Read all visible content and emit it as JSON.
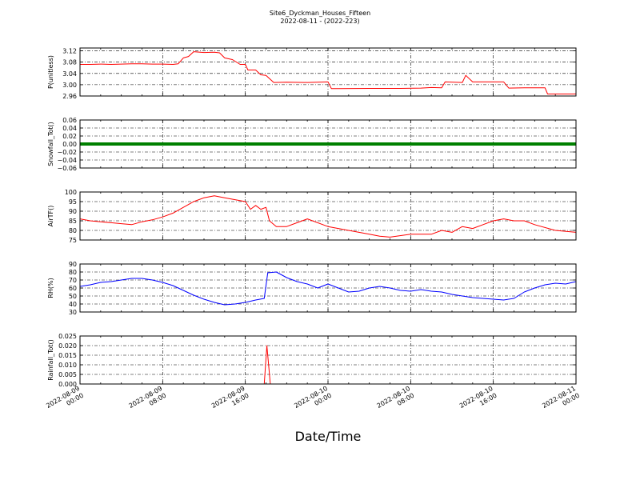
{
  "figure": {
    "title_line1": "Site6_Dyckman_Houses_Fifteen",
    "title_line2": "2022-08-11 - (2022-223)",
    "xlabel": "Date/Time"
  },
  "x_axis": {
    "range": [
      "2022-08-09 00:00",
      "2022-08-11 00:00"
    ],
    "ticks": [
      {
        "value": "2022-08-09 00:00",
        "line1": "2022-08-09",
        "line2": "00:00"
      },
      {
        "value": "2022-08-09 08:00",
        "line1": "2022-08-09",
        "line2": "08:00"
      },
      {
        "value": "2022-08-09 16:00",
        "line1": "2022-08-09",
        "line2": "16:00"
      },
      {
        "value": "2022-08-10 00:00",
        "line1": "2022-08-10",
        "line2": "00:00"
      },
      {
        "value": "2022-08-10 08:00",
        "line1": "2022-08-10",
        "line2": "08:00"
      },
      {
        "value": "2022-08-10 16:00",
        "line1": "2022-08-10",
        "line2": "16:00"
      },
      {
        "value": "2022-08-11 00:00",
        "line1": "2022-08-11",
        "line2": "00:00"
      }
    ]
  },
  "chart_data": [
    {
      "type": "line",
      "ylabel": "P(unitless)",
      "ylim": [
        2.96,
        3.13
      ],
      "yticks": [
        "3.12",
        "3.08",
        "3.04",
        "3.00",
        "2.96"
      ],
      "ytick_values": [
        3.12,
        3.08,
        3.04,
        3.0,
        2.96
      ],
      "grid": true,
      "series": [
        {
          "color": "#ff0000",
          "x": [
            "2022-08-09 00:00",
            "2022-08-09 01:00",
            "2022-08-09 02:00",
            "2022-08-09 03:00",
            "2022-08-09 04:00",
            "2022-08-09 05:00",
            "2022-08-09 06:00",
            "2022-08-09 07:00",
            "2022-08-09 08:00",
            "2022-08-09 09:00",
            "2022-08-09 09:30",
            "2022-08-09 10:00",
            "2022-08-09 10:30",
            "2022-08-09 11:00",
            "2022-08-09 12:00",
            "2022-08-09 13:00",
            "2022-08-09 13:30",
            "2022-08-09 14:00",
            "2022-08-09 14:45",
            "2022-08-09 15:30",
            "2022-08-09 16:00",
            "2022-08-09 16:15",
            "2022-08-09 17:00",
            "2022-08-09 17:30",
            "2022-08-09 18:00",
            "2022-08-09 18:45",
            "2022-08-09 20:00",
            "2022-08-09 22:00",
            "2022-08-10 00:00",
            "2022-08-10 00:20",
            "2022-08-10 01:00",
            "2022-08-10 04:00",
            "2022-08-10 07:00",
            "2022-08-10 09:00",
            "2022-08-10 10:00",
            "2022-08-10 11:00",
            "2022-08-10 11:20",
            "2022-08-10 13:00",
            "2022-08-10 13:20",
            "2022-08-10 14:00",
            "2022-08-10 16:00",
            "2022-08-10 17:00",
            "2022-08-10 17:30",
            "2022-08-10 19:00",
            "2022-08-10 21:00",
            "2022-08-10 21:15",
            "2022-08-10 24:00"
          ],
          "y": [
            3.072,
            3.072,
            3.073,
            3.072,
            3.073,
            3.074,
            3.074,
            3.073,
            3.073,
            3.072,
            3.074,
            3.095,
            3.1,
            3.117,
            3.114,
            3.115,
            3.113,
            3.095,
            3.089,
            3.072,
            3.072,
            3.052,
            3.052,
            3.035,
            3.033,
            3.008,
            3.009,
            3.008,
            3.01,
            2.986,
            2.986,
            2.987,
            2.987,
            2.988,
            2.99,
            2.989,
            3.01,
            3.008,
            3.033,
            3.01,
            3.01,
            3.01,
            2.988,
            2.989,
            2.989,
            2.967,
            2.967
          ]
        }
      ]
    },
    {
      "type": "line",
      "ylabel": "Snowfall_Tot()",
      "ylim": [
        -0.06,
        0.06
      ],
      "yticks": [
        "0.06",
        "0.04",
        "0.02",
        "0.00",
        "−0.02",
        "−0.04",
        "−0.06"
      ],
      "ytick_values": [
        0.06,
        0.04,
        0.02,
        0.0,
        -0.02,
        -0.04,
        -0.06
      ],
      "grid": true,
      "series": [
        {
          "color": "#008000",
          "x": [
            "2022-08-09 00:00",
            "2022-08-11 00:00"
          ],
          "y": [
            0,
            0
          ]
        }
      ]
    },
    {
      "type": "line",
      "ylabel": "AirTF()",
      "ylim": [
        75,
        100
      ],
      "yticks": [
        "100",
        "95",
        "90",
        "85",
        "80",
        "75"
      ],
      "ytick_values": [
        100,
        95,
        90,
        85,
        80,
        75
      ],
      "grid": true,
      "series": [
        {
          "color": "#ff0000",
          "x": [
            "2022-08-09 00:00",
            "2022-08-09 01:00",
            "2022-08-09 02:00",
            "2022-08-09 03:00",
            "2022-08-09 04:00",
            "2022-08-09 05:00",
            "2022-08-09 06:00",
            "2022-08-09 07:00",
            "2022-08-09 08:00",
            "2022-08-09 09:00",
            "2022-08-09 10:00",
            "2022-08-09 11:00",
            "2022-08-09 12:00",
            "2022-08-09 13:00",
            "2022-08-09 14:00",
            "2022-08-09 15:00",
            "2022-08-09 16:00",
            "2022-08-09 16:30",
            "2022-08-09 17:00",
            "2022-08-09 17:30",
            "2022-08-09 18:00",
            "2022-08-09 18:20",
            "2022-08-09 19:00",
            "2022-08-09 20:00",
            "2022-08-09 21:00",
            "2022-08-09 22:00",
            "2022-08-10 00:00",
            "2022-08-10 02:00",
            "2022-08-10 04:00",
            "2022-08-10 05:00",
            "2022-08-10 06:00",
            "2022-08-10 08:00",
            "2022-08-10 10:00",
            "2022-08-10 11:00",
            "2022-08-10 12:00",
            "2022-08-10 13:00",
            "2022-08-10 14:00",
            "2022-08-10 15:00",
            "2022-08-10 16:00",
            "2022-08-10 17:00",
            "2022-08-10 18:00",
            "2022-08-10 19:00",
            "2022-08-10 20:00",
            "2022-08-10 22:00",
            "2022-08-11 00:00"
          ],
          "y": [
            86,
            85,
            84.5,
            84,
            83.5,
            83,
            84.5,
            85.5,
            87,
            89,
            92,
            95,
            97,
            98,
            97,
            96,
            95,
            91,
            93,
            91,
            92,
            85,
            82,
            82,
            84,
            86,
            82,
            80,
            78,
            77,
            76.5,
            78,
            78,
            80,
            79,
            82,
            81,
            83,
            85,
            86,
            85,
            85,
            83,
            80,
            79
          ]
        }
      ]
    },
    {
      "type": "line",
      "ylabel": "RH(%)",
      "ylim": [
        30,
        90
      ],
      "yticks": [
        "90",
        "80",
        "70",
        "60",
        "50",
        "40",
        "30"
      ],
      "ytick_values": [
        90,
        80,
        70,
        60,
        50,
        40,
        30
      ],
      "grid": true,
      "series": [
        {
          "color": "#0000ff",
          "x": [
            "2022-08-09 00:00",
            "2022-08-09 01:00",
            "2022-08-09 02:00",
            "2022-08-09 03:00",
            "2022-08-09 04:00",
            "2022-08-09 05:00",
            "2022-08-09 06:00",
            "2022-08-09 07:00",
            "2022-08-09 08:00",
            "2022-08-09 09:00",
            "2022-08-09 10:00",
            "2022-08-09 11:00",
            "2022-08-09 12:00",
            "2022-08-09 13:00",
            "2022-08-09 14:00",
            "2022-08-09 15:00",
            "2022-08-09 16:00",
            "2022-08-09 17:00",
            "2022-08-09 17:50",
            "2022-08-09 18:10",
            "2022-08-09 19:00",
            "2022-08-09 20:00",
            "2022-08-09 21:00",
            "2022-08-09 22:00",
            "2022-08-09 23:00",
            "2022-08-10 00:00",
            "2022-08-10 01:00",
            "2022-08-10 02:00",
            "2022-08-10 03:00",
            "2022-08-10 04:00",
            "2022-08-10 05:00",
            "2022-08-10 06:00",
            "2022-08-10 07:00",
            "2022-08-10 08:00",
            "2022-08-10 09:00",
            "2022-08-10 10:00",
            "2022-08-10 11:00",
            "2022-08-10 12:00",
            "2022-08-10 13:00",
            "2022-08-10 14:00",
            "2022-08-10 15:00",
            "2022-08-10 16:00",
            "2022-08-10 17:00",
            "2022-08-10 18:00",
            "2022-08-10 19:00",
            "2022-08-10 20:00",
            "2022-08-10 21:00",
            "2022-08-10 22:00",
            "2022-08-10 23:00",
            "2022-08-11 00:00"
          ],
          "y": [
            62,
            64,
            67,
            68,
            70,
            72,
            72,
            70,
            67,
            63,
            57,
            51,
            46,
            42,
            39,
            40,
            42,
            45,
            47,
            79,
            80,
            73,
            68,
            65,
            60,
            65,
            60,
            55,
            56,
            60,
            62,
            60,
            57,
            56,
            58,
            56,
            55,
            52,
            50,
            48,
            47,
            46,
            45,
            47,
            55,
            60,
            64,
            66,
            65,
            68
          ]
        }
      ]
    },
    {
      "type": "line",
      "ylabel": "Rainfall_Tot()",
      "ylim": [
        0,
        0.025
      ],
      "yticks": [
        "0.025",
        "0.020",
        "0.015",
        "0.010",
        "0.005",
        "0.000"
      ],
      "ytick_values": [
        0.025,
        0.02,
        0.015,
        0.01,
        0.005,
        0.0
      ],
      "grid": true,
      "series": [
        {
          "color": "#ff0000",
          "x": [
            "2022-08-09 00:00",
            "2022-08-09 17:50",
            "2022-08-09 18:05",
            "2022-08-09 18:25",
            "2022-08-11 00:00"
          ],
          "y": [
            0,
            0,
            0.02,
            0,
            0
          ]
        }
      ]
    }
  ]
}
